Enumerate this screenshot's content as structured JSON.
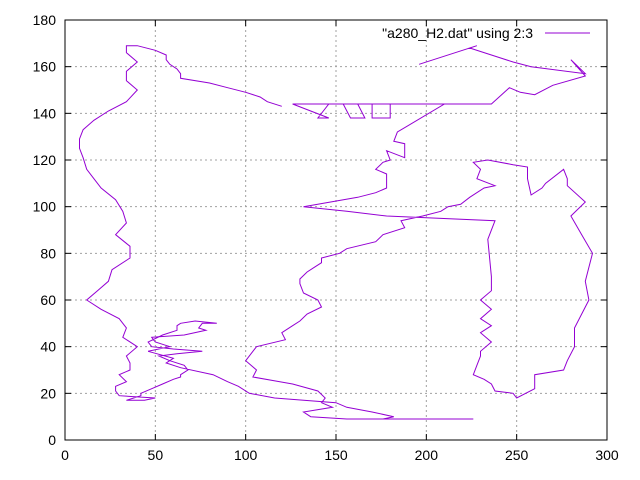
{
  "chart_data": {
    "type": "line",
    "title": "",
    "xlabel": "",
    "ylabel": "",
    "xlim": [
      0,
      300
    ],
    "ylim": [
      0,
      180
    ],
    "x_ticks": [
      "0",
      "50",
      "100",
      "150",
      "200",
      "250",
      "300"
    ],
    "y_ticks": [
      "0",
      "20",
      "40",
      "60",
      "80",
      "100",
      "120",
      "140",
      "160",
      "180"
    ],
    "x_tick_values": [
      0,
      50,
      100,
      150,
      200,
      250,
      300
    ],
    "y_tick_values": [
      0,
      20,
      40,
      60,
      80,
      100,
      120,
      140,
      160,
      180
    ],
    "grid": true,
    "legend_position": "top-right",
    "colors": {
      "series": "#9400d3",
      "grid": "#a0a0a0",
      "axis": "#000000"
    },
    "series": [
      {
        "name": "\"a280_H2.dat\" using 2:3",
        "x": [
          196,
          228,
          224,
          248,
          258,
          288,
          280,
          288,
          270,
          260,
          252,
          246,
          236,
          126,
          146,
          140,
          146,
          154,
          158,
          166,
          162,
          170,
          170,
          180,
          180,
          210,
          184,
          182,
          188,
          188,
          178,
          180,
          176,
          172,
          178,
          178,
          172,
          162,
          132,
          156,
          178,
          238,
          234,
          236,
          236,
          230,
          236,
          230,
          236,
          230,
          236,
          230,
          230,
          228,
          226,
          232,
          236,
          238,
          248,
          250,
          260,
          260,
          276,
          278,
          282,
          282,
          286,
          290,
          288,
          290,
          292,
          286,
          280,
          288,
          278,
          278,
          276,
          266,
          264,
          258,
          256,
          256,
          248,
          234,
          226,
          230,
          228,
          238,
          232,
          224,
          219,
          212,
          208,
          198,
          186,
          188,
          176,
          172,
          156,
          152,
          142,
          142,
          138,
          134,
          130,
          130,
          132,
          140,
          142,
          134,
          130,
          126,
          120,
          122,
          106,
          104,
          100,
          106,
          104,
          126,
          140,
          144,
          142,
          148,
          132,
          136,
          156,
          160,
          162,
          166,
          216,
          226,
          208,
          194,
          212,
          188,
          182,
          178,
          176,
          182,
          170,
          156,
          150,
          116,
          102,
          96,
          90,
          82,
          64,
          56,
          60,
          46,
          58,
          54,
          50,
          48,
          66,
          78,
          74,
          76,
          84,
          72,
          64,
          62,
          62,
          54,
          46,
          48,
          60,
          76,
          62,
          52,
          58,
          66,
          68,
          64,
          64,
          60,
          54,
          48,
          42,
          42,
          34,
          34,
          44,
          50,
          30,
          28,
          28,
          34,
          30,
          36,
          36,
          34,
          40,
          32,
          34,
          30,
          20,
          12,
          18,
          24,
          26,
          36,
          36,
          28,
          34,
          32,
          28,
          20,
          16,
          12,
          10,
          8,
          8,
          10,
          16,
          24,
          34,
          40,
          34,
          34,
          40,
          34,
          34,
          40,
          40,
          50,
          56,
          56,
          58,
          62,
          64,
          64,
          80,
          90,
          100,
          108,
          112,
          120
        ],
        "y": [
          161,
          169,
          168,
          162,
          160,
          157,
          163,
          156,
          152,
          148,
          149,
          151,
          144,
          144,
          138,
          138,
          144,
          144,
          138,
          138,
          144,
          144,
          138,
          138,
          144,
          144,
          132,
          128,
          127,
          121,
          124,
          120,
          119,
          116,
          114,
          108,
          106,
          104,
          100,
          98,
          96,
          94,
          86,
          70,
          64,
          60,
          56,
          52,
          49,
          46,
          42,
          38,
          36,
          32,
          28,
          26,
          24,
          21,
          20,
          18,
          22,
          28,
          30,
          34,
          40,
          48,
          54,
          60,
          68,
          74,
          80,
          88,
          96,
          102,
          109,
          112,
          116,
          110,
          108,
          105,
          112,
          117,
          118,
          120,
          119,
          116,
          112,
          109,
          108,
          104,
          101,
          100,
          98,
          96,
          94,
          91,
          88,
          85,
          82,
          80,
          78,
          76,
          74,
          72,
          69,
          67,
          63,
          60,
          57,
          54,
          51,
          49,
          46,
          43,
          40,
          38,
          34,
          30,
          27,
          24,
          21,
          18,
          16,
          14,
          12,
          10,
          9,
          9,
          9,
          9,
          9,
          9,
          9,
          9,
          9,
          9,
          9,
          9,
          9,
          10,
          12,
          14,
          16,
          18,
          20,
          23,
          25,
          28,
          31,
          33,
          35,
          38,
          40,
          41,
          42,
          44,
          45,
          47,
          48,
          50,
          50,
          51,
          50,
          49,
          47,
          45,
          42,
          40,
          39,
          38,
          37,
          36,
          34,
          32,
          30,
          28,
          27,
          26,
          24,
          22,
          20,
          19,
          17,
          17,
          17,
          18,
          19,
          21,
          23,
          25,
          28,
          30,
          33,
          36,
          40,
          44,
          48,
          52,
          56,
          60,
          64,
          68,
          73,
          78,
          83,
          88,
          93,
          98,
          103,
          108,
          112,
          116,
          121,
          125,
          129,
          133,
          137,
          141,
          145,
          150,
          154,
          158,
          162,
          166,
          169,
          169,
          169,
          167,
          165,
          163,
          161,
          159,
          157,
          155,
          153,
          151,
          149,
          147,
          145,
          143
        ]
      }
    ]
  }
}
